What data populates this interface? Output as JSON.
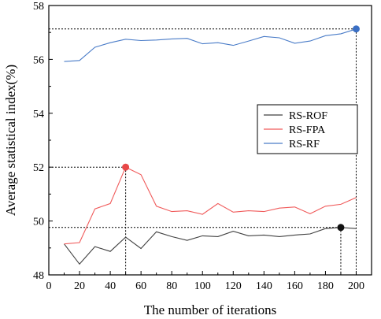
{
  "chart_data": {
    "type": "line",
    "xlabel": "The number of iterations",
    "ylabel": "Average statistical index(%)",
    "xlim": [
      0,
      210
    ],
    "ylim": [
      48,
      58
    ],
    "xticks": [
      0,
      20,
      40,
      60,
      80,
      100,
      120,
      140,
      160,
      180,
      200
    ],
    "yticks": [
      48,
      50,
      52,
      54,
      56,
      58
    ],
    "x": [
      10,
      20,
      30,
      40,
      50,
      60,
      70,
      80,
      90,
      100,
      110,
      120,
      130,
      140,
      150,
      160,
      170,
      180,
      190,
      200
    ],
    "series": [
      {
        "name": "RS-ROF",
        "color": "#404040",
        "values": [
          49.15,
          48.4,
          49.05,
          48.87,
          49.4,
          48.98,
          49.6,
          49.42,
          49.28,
          49.45,
          49.42,
          49.62,
          49.45,
          49.48,
          49.42,
          49.48,
          49.52,
          49.72,
          49.76,
          49.72
        ],
        "highlight": {
          "x": 190,
          "y": 49.76,
          "color": "#111111"
        }
      },
      {
        "name": "RS-FPA",
        "color": "#f05a5a",
        "values": [
          49.15,
          49.2,
          50.45,
          50.65,
          52.0,
          51.72,
          50.55,
          50.35,
          50.38,
          50.25,
          50.65,
          50.33,
          50.38,
          50.35,
          50.48,
          50.52,
          50.27,
          50.55,
          50.62,
          50.87
        ],
        "highlight": {
          "x": 50,
          "y": 52.0,
          "color": "#e84848"
        }
      },
      {
        "name": "RS-RF",
        "color": "#4a7cc8",
        "values": [
          55.92,
          55.96,
          56.45,
          56.62,
          56.75,
          56.7,
          56.72,
          56.76,
          56.78,
          56.58,
          56.62,
          56.52,
          56.68,
          56.85,
          56.8,
          56.6,
          56.68,
          56.88,
          56.95,
          57.13
        ],
        "highlight": {
          "x": 200,
          "y": 57.13,
          "color": "#3a6fc4"
        }
      }
    ],
    "legend_position": "right-middle",
    "grid": false
  }
}
